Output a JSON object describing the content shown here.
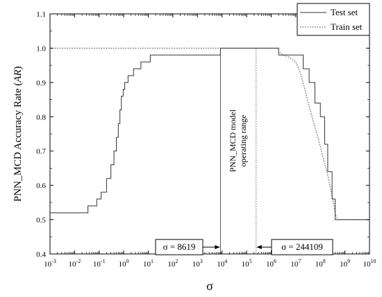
{
  "chart_data": {
    "type": "line",
    "title": "",
    "xlabel": "σ",
    "ylabel": "PNN_MCD Accuracy Rate (AR)",
    "x_scale": "log",
    "xlim": [
      0.001,
      10000000000
    ],
    "ylim": [
      0.4,
      1.1
    ],
    "x_ticks": [
      {
        "v": 0.001,
        "b": "10",
        "e": "-3"
      },
      {
        "v": 0.01,
        "b": "10",
        "e": "-2"
      },
      {
        "v": 0.1,
        "b": "10",
        "e": "-1"
      },
      {
        "v": 1,
        "b": "10",
        "e": "0"
      },
      {
        "v": 10,
        "b": "10",
        "e": "1"
      },
      {
        "v": 100,
        "b": "10",
        "e": "2"
      },
      {
        "v": 1000,
        "b": "10",
        "e": "3"
      },
      {
        "v": 10000,
        "b": "10",
        "e": "4"
      },
      {
        "v": 100000,
        "b": "10",
        "e": "5"
      },
      {
        "v": 1000000,
        "b": "10",
        "e": "6"
      },
      {
        "v": 10000000,
        "b": "10",
        "e": "7"
      },
      {
        "v": 100000000,
        "b": "10",
        "e": "8"
      },
      {
        "v": 1000000000,
        "b": "10",
        "e": "9"
      },
      {
        "v": 10000000000,
        "b": "10",
        "e": "10"
      }
    ],
    "y_ticks": [
      "0.4",
      "0.5",
      "0.6",
      "0.7",
      "0.8",
      "0.9",
      "1.0",
      "1.1"
    ],
    "legend_position": "top-right",
    "series": [
      {
        "name": "Test set",
        "style": "solid",
        "color": "#333333",
        "points": [
          [
            0.001,
            0.52
          ],
          [
            0.035,
            0.52
          ],
          [
            0.035,
            0.54
          ],
          [
            0.08,
            0.54
          ],
          [
            0.08,
            0.56
          ],
          [
            0.12,
            0.56
          ],
          [
            0.12,
            0.58
          ],
          [
            0.2,
            0.58
          ],
          [
            0.2,
            0.62
          ],
          [
            0.3,
            0.62
          ],
          [
            0.3,
            0.66
          ],
          [
            0.4,
            0.66
          ],
          [
            0.4,
            0.7
          ],
          [
            0.5,
            0.7
          ],
          [
            0.5,
            0.74
          ],
          [
            0.6,
            0.74
          ],
          [
            0.6,
            0.78
          ],
          [
            0.7,
            0.78
          ],
          [
            0.7,
            0.82
          ],
          [
            0.8,
            0.82
          ],
          [
            0.8,
            0.86
          ],
          [
            0.95,
            0.86
          ],
          [
            0.95,
            0.88
          ],
          [
            1.1,
            0.88
          ],
          [
            1.1,
            0.9
          ],
          [
            1.5,
            0.9
          ],
          [
            1.5,
            0.92
          ],
          [
            2.5,
            0.92
          ],
          [
            2.5,
            0.94
          ],
          [
            5,
            0.94
          ],
          [
            5,
            0.96
          ],
          [
            12,
            0.96
          ],
          [
            12,
            0.98
          ],
          [
            8619,
            0.98
          ],
          [
            8619,
            1.0
          ],
          [
            2000000,
            1.0
          ],
          [
            2000000,
            0.98
          ],
          [
            20000000,
            0.98
          ],
          [
            20000000,
            0.94
          ],
          [
            35000000,
            0.94
          ],
          [
            35000000,
            0.9
          ],
          [
            60000000,
            0.9
          ],
          [
            60000000,
            0.84
          ],
          [
            100000000,
            0.84
          ],
          [
            100000000,
            0.8
          ],
          [
            150000000,
            0.8
          ],
          [
            150000000,
            0.72
          ],
          [
            200000000,
            0.72
          ],
          [
            200000000,
            0.64
          ],
          [
            300000000,
            0.64
          ],
          [
            300000000,
            0.56
          ],
          [
            400000000,
            0.56
          ],
          [
            400000000,
            0.5
          ],
          [
            10000000000,
            0.5
          ]
        ]
      },
      {
        "name": "Train set",
        "style": "dotted",
        "color": "#333333",
        "points": [
          [
            0.001,
            1.0
          ],
          [
            2000000,
            1.0
          ],
          [
            2000000,
            0.99
          ],
          [
            3000000,
            0.98
          ],
          [
            5000000,
            0.975
          ],
          [
            10000000,
            0.96
          ],
          [
            15000000,
            0.93
          ],
          [
            20000000,
            0.9
          ],
          [
            30000000,
            0.85
          ],
          [
            50000000,
            0.79
          ],
          [
            80000000,
            0.74
          ],
          [
            120000000,
            0.69
          ],
          [
            200000000,
            0.63
          ],
          [
            300000000,
            0.57
          ],
          [
            400000000,
            0.52
          ],
          [
            500000000,
            0.5
          ],
          [
            10000000000,
            0.5
          ]
        ]
      }
    ],
    "annotations": [
      {
        "text": "σ = 8619",
        "x": 8619,
        "y": 0.42,
        "arrow": "right"
      },
      {
        "text": "σ = 244109",
        "x": 244109,
        "y": 0.42,
        "arrow": "left"
      }
    ],
    "range_label": [
      "PNN_MCD model",
      "operating range"
    ],
    "range_bounds": [
      8619,
      244109
    ]
  }
}
